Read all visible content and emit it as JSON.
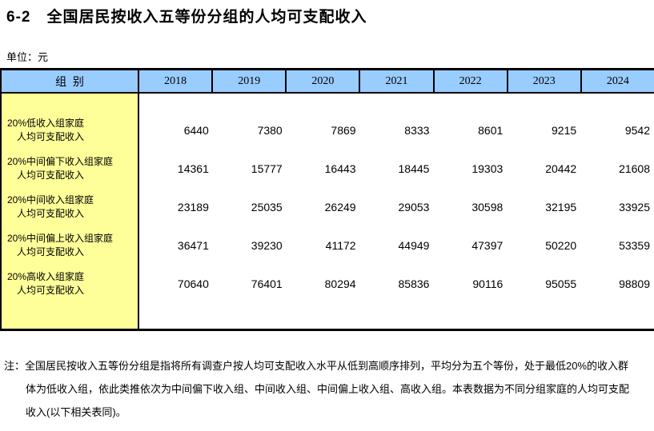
{
  "title": "6-2　全国居民按收入五等份分组的人均可支配收入",
  "unit_label": "单位：元",
  "colors": {
    "header_bg": "#99CCFF",
    "label_col_bg": "#FFFF99",
    "border": "#000000"
  },
  "table": {
    "group_header": "组  别",
    "years": [
      "2018",
      "2019",
      "2020",
      "2021",
      "2022",
      "2023",
      "2024"
    ],
    "rows": [
      {
        "label_line1": "20%低收入组家庭",
        "label_line2": "人均可支配收入",
        "values": [
          "6440",
          "7380",
          "7869",
          "8333",
          "8601",
          "9215",
          "9542"
        ]
      },
      {
        "label_line1": "20%中间偏下收入组家庭",
        "label_line2": "人均可支配收入",
        "values": [
          "14361",
          "15777",
          "16443",
          "18445",
          "19303",
          "20442",
          "21608"
        ]
      },
      {
        "label_line1": "20%中间收入组家庭",
        "label_line2": "人均可支配收入",
        "values": [
          "23189",
          "25035",
          "26249",
          "29053",
          "30598",
          "32195",
          "33925"
        ]
      },
      {
        "label_line1": "20%中间偏上收入组家庭",
        "label_line2": "人均可支配收入",
        "values": [
          "36471",
          "39230",
          "41172",
          "44949",
          "47397",
          "50220",
          "53359"
        ]
      },
      {
        "label_line1": "20%高收入组家庭",
        "label_line2": "人均可支配收入",
        "values": [
          "70640",
          "76401",
          "80294",
          "85836",
          "90116",
          "95055",
          "98809"
        ]
      }
    ]
  },
  "note": {
    "line1": "注：全国居民按收入五等份分组是指将所有调查户按人均可支配收入水平从低到高顺序排列，平均分为五个等份，处于最低20%的收入群",
    "line2": "体为低收入组，依此类推依次为中间偏下收入组、中间收入组、中间偏上收入组、高收入组。本表数据为不同分组家庭的人均可支配",
    "line3": "收入(以下相关表同)。"
  }
}
